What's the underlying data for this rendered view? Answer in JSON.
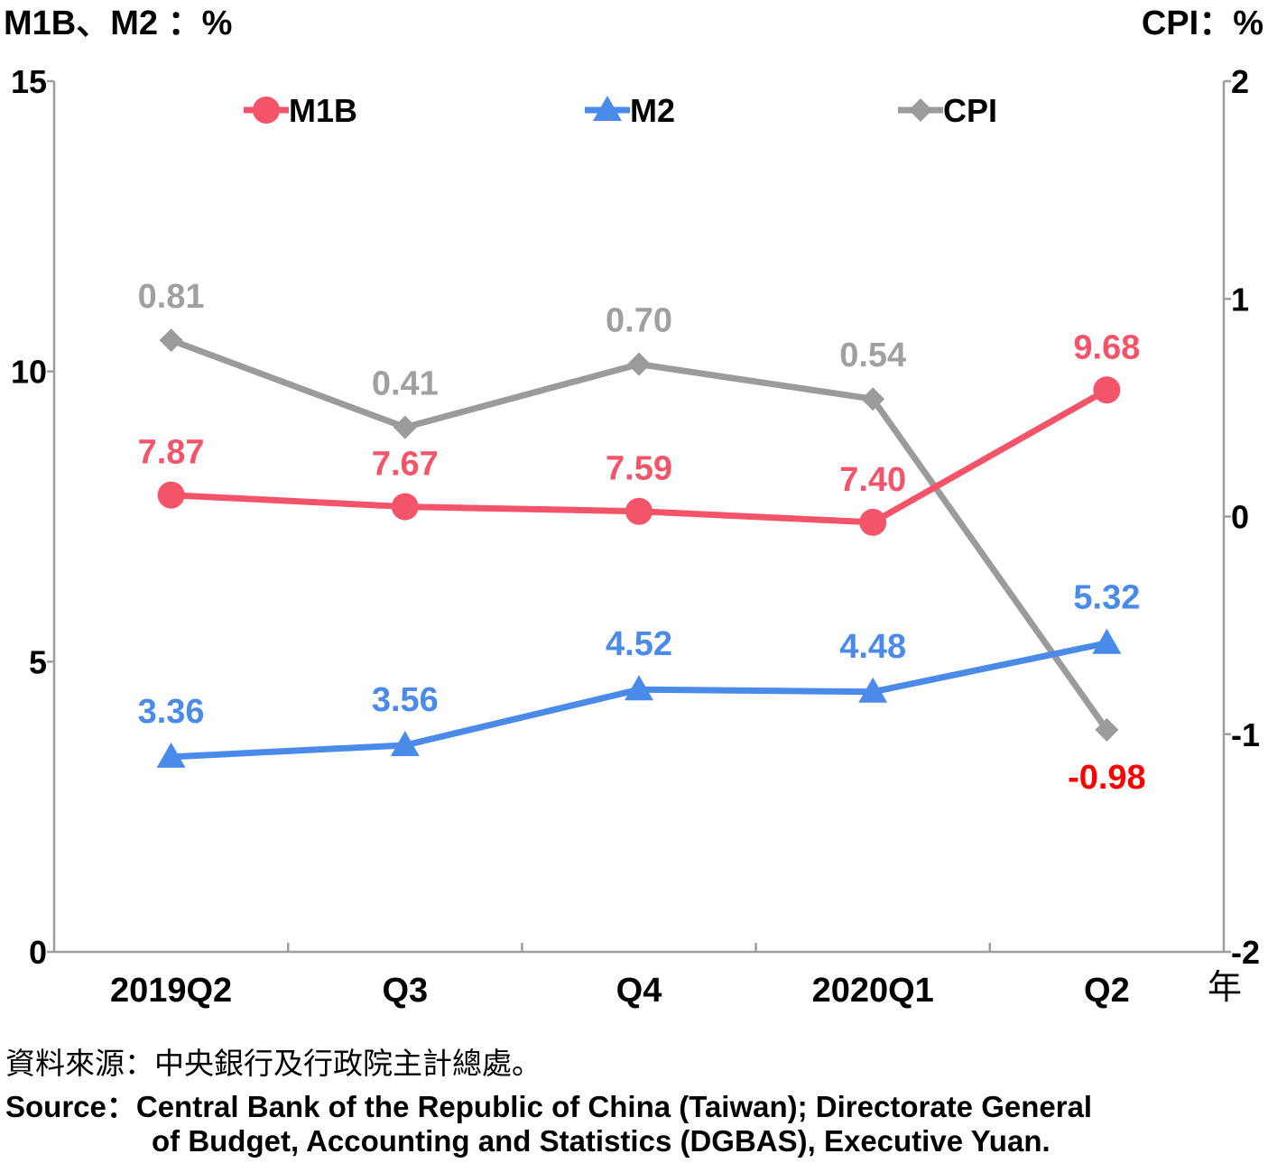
{
  "chart_data": {
    "type": "line",
    "left_axis_title": "M1B、M2 ：%",
    "right_axis_title": "CPI：%",
    "x_unit": "年",
    "categories": [
      "2019Q2",
      "Q3",
      "Q4",
      "2020Q1",
      "Q2"
    ],
    "left_axis": {
      "ylim": [
        0,
        15
      ],
      "ticks": [
        "0",
        "5",
        "10",
        "15"
      ],
      "tick_values": [
        0,
        5,
        10,
        15
      ]
    },
    "right_axis": {
      "ylim": [
        -2,
        2
      ],
      "ticks": [
        "-2",
        "-1",
        "0",
        "1",
        "2"
      ],
      "tick_values": [
        -2,
        -1,
        0,
        1,
        2
      ]
    },
    "grid": false,
    "legend_position": "top",
    "series": [
      {
        "name": "M1B",
        "axis": "left",
        "marker": "circle",
        "color": "#f4546a",
        "values": [
          7.87,
          7.67,
          7.59,
          7.4,
          9.68
        ],
        "labels": [
          "7.87",
          "7.67",
          "7.59",
          "7.40",
          "9.68"
        ]
      },
      {
        "name": "M2",
        "axis": "left",
        "marker": "triangle",
        "color": "#4a8bea",
        "values": [
          3.36,
          3.56,
          4.52,
          4.48,
          5.32
        ],
        "labels": [
          "3.36",
          "3.56",
          "4.52",
          "4.48",
          "5.32"
        ]
      },
      {
        "name": "CPI",
        "axis": "right",
        "marker": "diamond",
        "color": "#9b9b9b",
        "values": [
          0.81,
          0.41,
          0.7,
          0.54,
          -0.98
        ],
        "labels": [
          "0.81",
          "0.41",
          "0.70",
          "0.54",
          "-0.98"
        ],
        "negative_label_color": "#ff0000"
      }
    ]
  },
  "source": {
    "zh": "資料來源：中央銀行及行政院主計總處。",
    "en_line1": "Source：Central Bank of the Republic of China (Taiwan); Directorate General",
    "en_line2": "of Budget, Accounting and Statistics (DGBAS), Executive Yuan."
  }
}
